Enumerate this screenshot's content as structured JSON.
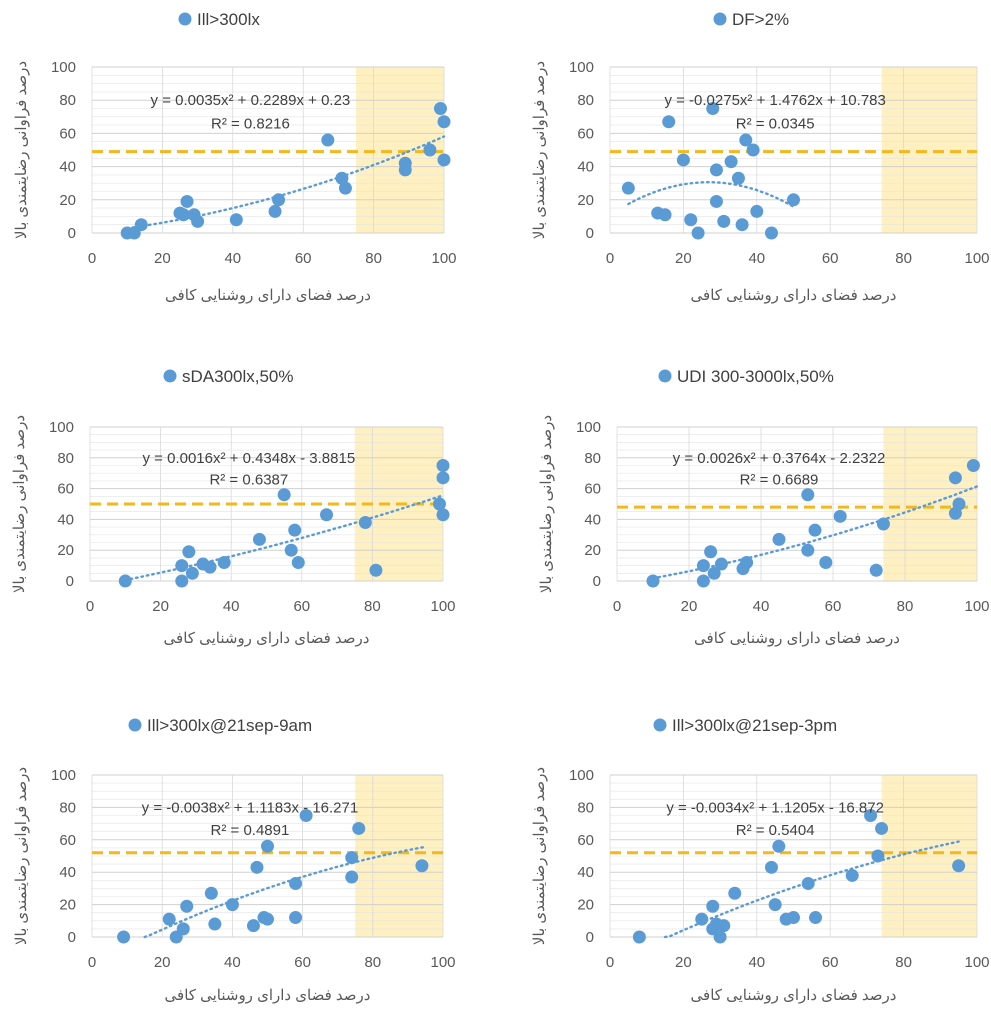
{
  "colors": {
    "point": "#5B9BD5",
    "trend": "#5B9BD5",
    "threshold": "#F2B81C",
    "highlight": "#FFF0C2",
    "grid": "#E4E4E4",
    "axis": "#595959"
  },
  "chart_data": [
    {
      "type": "scatter",
      "title": "Ill>300lx",
      "xlabel": "درصد فضای دارای روشنایی کافی",
      "ylabel": "درصد فراوانی رضایتمندی بالا",
      "xlim": [
        0,
        100
      ],
      "ylim": [
        0,
        100
      ],
      "xticks": [
        "0",
        "20",
        "40",
        "60",
        "80",
        "100"
      ],
      "yticks": [
        "0",
        "20",
        "40",
        "60",
        "80",
        "100"
      ],
      "threshold_y": 49,
      "highlight_x": [
        75,
        100
      ],
      "trend": {
        "a": 0.0035,
        "b": 0.2289,
        "c": 0.23,
        "x_range": [
          10,
          100
        ]
      },
      "equation": "y = 0.0035x² + 0.2289x + 0.23",
      "r2": "R² = 0.8216",
      "points": [
        [
          10,
          0
        ],
        [
          12,
          0
        ],
        [
          14,
          5
        ],
        [
          25,
          12
        ],
        [
          26,
          11
        ],
        [
          27,
          19
        ],
        [
          29,
          11
        ],
        [
          30,
          7
        ],
        [
          41,
          8
        ],
        [
          52,
          13
        ],
        [
          53,
          20
        ],
        [
          67,
          56
        ],
        [
          71,
          33
        ],
        [
          72,
          27
        ],
        [
          89,
          38
        ],
        [
          89,
          42
        ],
        [
          96,
          50
        ],
        [
          99,
          75
        ],
        [
          100,
          67
        ],
        [
          100,
          44
        ]
      ]
    },
    {
      "type": "scatter",
      "title": "DF>2%",
      "xlabel": "درصد فضای دارای روشنایی کافی",
      "ylabel": "درصد فراوانی رضایتمندی بالا",
      "xlim": [
        0,
        100
      ],
      "ylim": [
        0,
        100
      ],
      "xticks": [
        "0",
        "20",
        "40",
        "60",
        "80",
        "100"
      ],
      "yticks": [
        "0",
        "20",
        "40",
        "60",
        "80",
        "100"
      ],
      "threshold_y": 49,
      "highlight_x": [
        74,
        100
      ],
      "trend": {
        "a": -0.0275,
        "b": 1.4762,
        "c": 10.783,
        "x_range": [
          5,
          50
        ]
      },
      "equation": "y = -0.0275x² + 1.4762x + 10.783",
      "r2": "R² = 0.0345",
      "points": [
        [
          5,
          27
        ],
        [
          13,
          12
        ],
        [
          15,
          11
        ],
        [
          16,
          67
        ],
        [
          20,
          44
        ],
        [
          22,
          8
        ],
        [
          24,
          0
        ],
        [
          28,
          75
        ],
        [
          29,
          19
        ],
        [
          29,
          38
        ],
        [
          31,
          7
        ],
        [
          33,
          43
        ],
        [
          35,
          33
        ],
        [
          36,
          5
        ],
        [
          37,
          56
        ],
        [
          39,
          50
        ],
        [
          40,
          13
        ],
        [
          44,
          0
        ],
        [
          50,
          20
        ]
      ]
    },
    {
      "type": "scatter",
      "title": "sDA300lx,50%",
      "xlabel": "درصد فضای دارای روشنایی کافی",
      "ylabel": "درصد فراوانی رضایتمندی بالا",
      "xlim": [
        0,
        100
      ],
      "ylim": [
        0,
        100
      ],
      "xticks": [
        "0",
        "20",
        "40",
        "60",
        "80",
        "100"
      ],
      "yticks": [
        "0",
        "20",
        "40",
        "60",
        "80",
        "100"
      ],
      "threshold_y": 50,
      "highlight_x": [
        75,
        100
      ],
      "trend": {
        "a": 0.0016,
        "b": 0.4348,
        "c": -3.8815,
        "x_range": [
          10,
          100
        ]
      },
      "equation": "y = 0.0016x² + 0.4348x - 3.8815",
      "r2": "R² = 0.6387",
      "points": [
        [
          10,
          0
        ],
        [
          26,
          0
        ],
        [
          26,
          10
        ],
        [
          28,
          19
        ],
        [
          29,
          5
        ],
        [
          32,
          11
        ],
        [
          34,
          9
        ],
        [
          38,
          12
        ],
        [
          48,
          27
        ],
        [
          55,
          56
        ],
        [
          57,
          20
        ],
        [
          58,
          33
        ],
        [
          59,
          12
        ],
        [
          67,
          43
        ],
        [
          78,
          38
        ],
        [
          81,
          7
        ],
        [
          99,
          50
        ],
        [
          100,
          75
        ],
        [
          100,
          67
        ],
        [
          100,
          43
        ]
      ]
    },
    {
      "type": "scatter",
      "title": "UDI 300-3000lx,50%",
      "xlabel": "درصد فضای دارای روشنایی کافی",
      "ylabel": "درصد فراوانی رضایتمندی بالا",
      "xlim": [
        0,
        100
      ],
      "ylim": [
        0,
        100
      ],
      "xticks": [
        "0",
        "20",
        "40",
        "60",
        "80",
        "100"
      ],
      "yticks": [
        "0",
        "20",
        "40",
        "60",
        "80",
        "100"
      ],
      "threshold_y": 48,
      "highlight_x": [
        74,
        100
      ],
      "trend": {
        "a": 0.0026,
        "b": 0.3764,
        "c": -2.2322,
        "x_range": [
          10,
          100
        ]
      },
      "equation": "y = 0.0026x² + 0.3764x - 2.2322",
      "r2": "R² = 0.6689",
      "points": [
        [
          10,
          0
        ],
        [
          24,
          0
        ],
        [
          24,
          10
        ],
        [
          26,
          19
        ],
        [
          27,
          5
        ],
        [
          29,
          11
        ],
        [
          35,
          8
        ],
        [
          36,
          12
        ],
        [
          45,
          27
        ],
        [
          53,
          56
        ],
        [
          53,
          20
        ],
        [
          55,
          33
        ],
        [
          58,
          12
        ],
        [
          62,
          42
        ],
        [
          72,
          7
        ],
        [
          74,
          37
        ],
        [
          94,
          44
        ],
        [
          94,
          67
        ],
        [
          95,
          50
        ],
        [
          99,
          75
        ]
      ]
    },
    {
      "type": "scatter",
      "title": "Ill>300lx@21sep-9am",
      "xlabel": "درصد فضای دارای روشنایی کافی",
      "ylabel": "درصد فراوانی رضایتمندی بالا",
      "xlim": [
        0,
        100
      ],
      "ylim": [
        0,
        100
      ],
      "xticks": [
        "0",
        "20",
        "40",
        "60",
        "80",
        "100"
      ],
      "yticks": [
        "0",
        "20",
        "40",
        "60",
        "80",
        "100"
      ],
      "threshold_y": 52,
      "highlight_x": [
        75,
        100
      ],
      "trend": {
        "a": -0.0038,
        "b": 1.1183,
        "c": -16.271,
        "x_range": [
          15,
          95
        ]
      },
      "equation": "y = -0.0038x² + 1.1183x - 16.271",
      "r2": "R² = 0.4891",
      "points": [
        [
          9,
          0
        ],
        [
          22,
          11
        ],
        [
          24,
          0
        ],
        [
          26,
          5
        ],
        [
          27,
          19
        ],
        [
          34,
          27
        ],
        [
          35,
          8
        ],
        [
          40,
          20
        ],
        [
          46,
          7
        ],
        [
          47,
          43
        ],
        [
          49,
          12
        ],
        [
          50,
          11
        ],
        [
          50,
          56
        ],
        [
          58,
          33
        ],
        [
          58,
          12
        ],
        [
          61,
          75
        ],
        [
          74,
          49
        ],
        [
          74,
          37
        ],
        [
          76,
          67
        ],
        [
          94,
          44
        ]
      ]
    },
    {
      "type": "scatter",
      "title": "Ill>300lx@21sep-3pm",
      "xlabel": "درصد فضای دارای روشنایی کافی",
      "ylabel": "درصد فراوانی رضایتمندی بالا",
      "xlim": [
        0,
        100
      ],
      "ylim": [
        0,
        100
      ],
      "xticks": [
        "0",
        "20",
        "40",
        "60",
        "80",
        "100"
      ],
      "yticks": [
        "0",
        "20",
        "40",
        "60",
        "80",
        "100"
      ],
      "threshold_y": 52,
      "highlight_x": [
        74,
        100
      ],
      "trend": {
        "a": -0.0034,
        "b": 1.1205,
        "c": -16.872,
        "x_range": [
          15,
          95
        ]
      },
      "equation": "y = -0.0034x² + 1.1205x - 16.872",
      "r2": "R² = 0.5404",
      "points": [
        [
          8,
          0
        ],
        [
          25,
          11
        ],
        [
          28,
          19
        ],
        [
          28,
          5
        ],
        [
          29,
          8
        ],
        [
          30,
          0
        ],
        [
          31,
          7
        ],
        [
          34,
          27
        ],
        [
          44,
          43
        ],
        [
          45,
          20
        ],
        [
          46,
          56
        ],
        [
          48,
          11
        ],
        [
          50,
          12
        ],
        [
          54,
          33
        ],
        [
          56,
          12
        ],
        [
          66,
          38
        ],
        [
          71,
          75
        ],
        [
          73,
          50
        ],
        [
          74,
          67
        ],
        [
          95,
          44
        ]
      ]
    }
  ]
}
